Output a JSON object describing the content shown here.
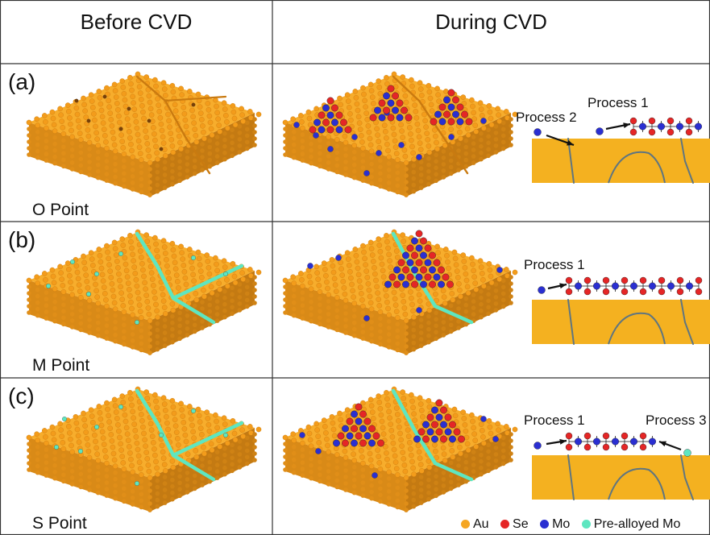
{
  "headers": {
    "before": "Before CVD",
    "during": "During CVD"
  },
  "rows": [
    {
      "label": "(a)",
      "point": "O Point"
    },
    {
      "label": "(b)",
      "point": "M Point"
    },
    {
      "label": "(c)",
      "point": "S Point"
    }
  ],
  "processes": {
    "row_a": {
      "p2": "Process 2",
      "p1": "Process 1"
    },
    "row_b": {
      "p1": "Process 1"
    },
    "row_c": {
      "p1": "Process 1",
      "p3": "Process 3"
    }
  },
  "legend": {
    "au": "Au",
    "se": "Se",
    "mo": "Mo",
    "prealloyed": "Pre-alloyed Mo"
  },
  "colors": {
    "au": "#f5a623",
    "au_dark": "#c97a10",
    "se": "#e52626",
    "mo": "#2a2fd1",
    "prealloyed": "#5ee6c0",
    "substrate": "#f4b120",
    "grain_line": "#5f7580"
  }
}
